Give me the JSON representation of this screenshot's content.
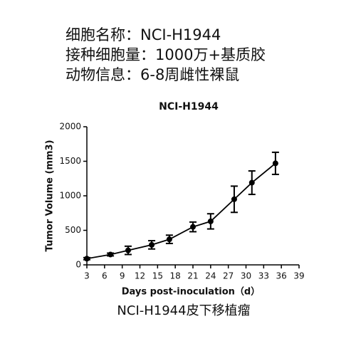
{
  "header": {
    "lines": [
      "细胞名称：NCI-H1944",
      "接种细胞量：1000万+基质胶",
      "动物信息：6-8周雌性裸鼠"
    ]
  },
  "chart_data": {
    "type": "line",
    "title": "NCI-H1944",
    "x_label": "Days post-inoculation（d）",
    "y_label": "Tumor Volume (mm3)",
    "x": [
      3,
      7,
      10,
      14,
      17,
      21,
      24,
      28,
      31,
      35
    ],
    "values": [
      90,
      150,
      210,
      290,
      370,
      550,
      630,
      950,
      1190,
      1470
    ],
    "errors": [
      15,
      20,
      60,
      60,
      60,
      70,
      110,
      190,
      170,
      160
    ],
    "color": "#000000",
    "xlim": [
      3,
      39
    ],
    "xticks": [
      3,
      6,
      9,
      12,
      15,
      18,
      21,
      24,
      27,
      30,
      33,
      36,
      39
    ],
    "ylim": [
      0,
      2000
    ],
    "yticks": [
      0,
      500,
      1000,
      1500,
      2000
    ]
  },
  "caption": "NCI-H1944皮下移植瘤"
}
